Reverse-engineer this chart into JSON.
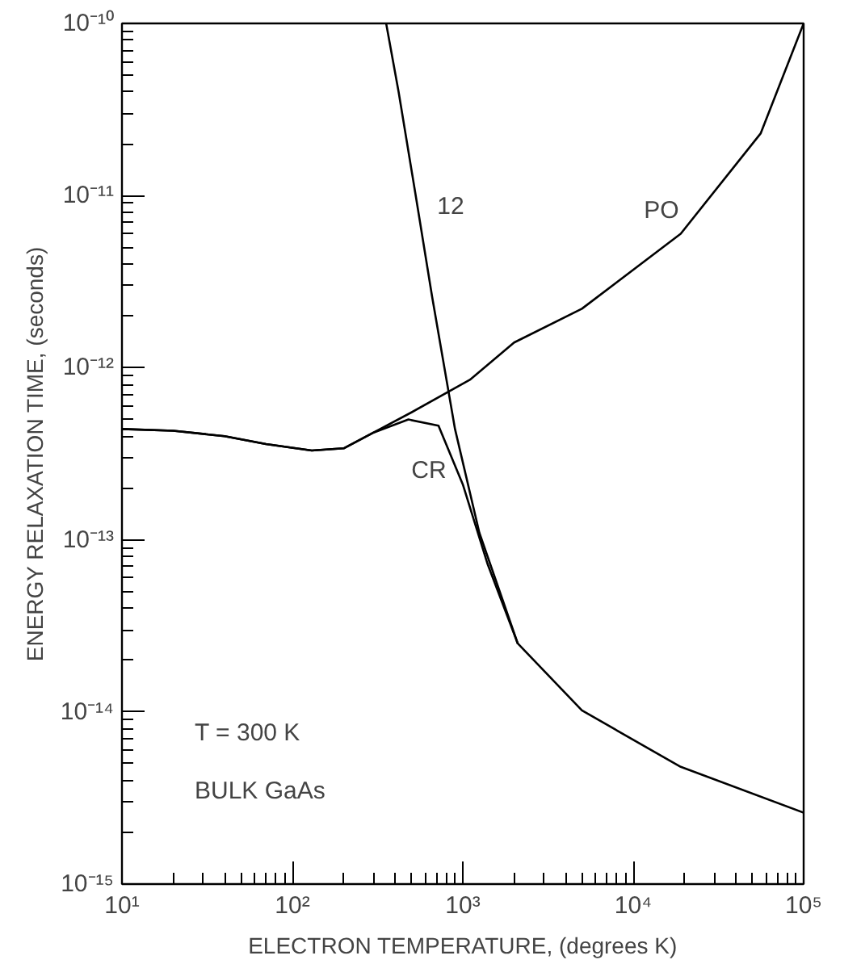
{
  "chart_data": {
    "type": "line",
    "xlabel": "ELECTRON TEMPERATURE, (degrees K)",
    "ylabel": "ENERGY RELAXATION TIME, (seconds)",
    "log": "xy",
    "grid": false,
    "legend": false,
    "marker": "none",
    "line_style": "solid",
    "xlim": [
      10,
      100000
    ],
    "ylim": [
      1e-15,
      1e-10
    ],
    "xticks": [
      {
        "value": 10,
        "label": "10¹"
      },
      {
        "value": 100,
        "label": "10²"
      },
      {
        "value": 1000,
        "label": "10³"
      },
      {
        "value": 10000,
        "label": "10⁴"
      },
      {
        "value": 100000,
        "label": "10⁵"
      }
    ],
    "yticks": [
      {
        "value": 1e-15,
        "label": "10⁻¹⁵"
      },
      {
        "value": 1e-14,
        "label": "10⁻¹⁴"
      },
      {
        "value": 1e-13,
        "label": "10⁻¹³"
      },
      {
        "value": 1e-12,
        "label": "10⁻¹²"
      },
      {
        "value": 1e-11,
        "label": "10⁻¹¹"
      },
      {
        "value": 1e-10,
        "label": "10⁻¹⁰"
      }
    ],
    "series": [
      {
        "name": "PO",
        "color": "#000000",
        "x": [
          10,
          20,
          40,
          70,
          130,
          200,
          300,
          500,
          1100,
          2000,
          5000,
          19000,
          56000,
          100000
        ],
        "values": [
          4.4e-13,
          4.3e-13,
          4e-13,
          3.6e-13,
          3.3e-13,
          3.4e-13,
          4.2e-13,
          5.5e-13,
          8.5e-13,
          1.4e-12,
          2.2e-12,
          6e-12,
          2.3e-11,
          1e-10
        ]
      },
      {
        "name": "12",
        "color": "#000000",
        "x": [
          355,
          420,
          525,
          660,
          900,
          1250,
          2100,
          5000,
          19000,
          100000
        ],
        "values": [
          1e-10,
          4e-11,
          1.05e-11,
          2.6e-12,
          4.4e-13,
          1.1e-13,
          2.5e-14,
          1.02e-14,
          4.8e-15,
          2.6e-15
        ]
      },
      {
        "name": "CR",
        "color": "#000000",
        "x": [
          10,
          20,
          40,
          70,
          130,
          200,
          300,
          480,
          720,
          1000,
          1400,
          2100
        ],
        "values": [
          4.4e-13,
          4.3e-13,
          4e-13,
          3.6e-13,
          3.3e-13,
          3.4e-13,
          4.2e-13,
          5e-13,
          4.6e-13,
          2.1e-13,
          7.2e-14,
          2.5e-14
        ]
      }
    ],
    "annotations": [
      "T = 300 K",
      "BULK GaAs"
    ]
  }
}
